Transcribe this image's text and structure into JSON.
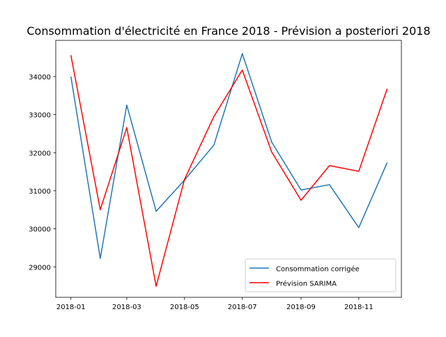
{
  "chart_data": {
    "type": "line",
    "title": "Consommation d'électricité en France 2018 - Prévision a posteriori 2018",
    "xlabel": "",
    "ylabel": "",
    "x": [
      "2018-01",
      "2018-02",
      "2018-03",
      "2018-04",
      "2018-05",
      "2018-06",
      "2018-07",
      "2018-08",
      "2018-09",
      "2018-10",
      "2018-11",
      "2018-12"
    ],
    "x_tick_labels": [
      "2018-01",
      "2018-03",
      "2018-05",
      "2018-07",
      "2018-09",
      "2018-11"
    ],
    "y_ticks": [
      29000,
      30000,
      31000,
      32000,
      33000,
      34000
    ],
    "ylim": [
      28200,
      34950
    ],
    "xlim": [
      "2017-12-16",
      "2018-12-16"
    ],
    "grid": false,
    "legend_position": "lower-right",
    "series": [
      {
        "name": "Consommation corrigée",
        "color": "#1f77b4",
        "values": [
          34000,
          29220,
          33250,
          30460,
          31280,
          32200,
          34600,
          32280,
          31020,
          31160,
          30030,
          31740
        ]
      },
      {
        "name": "Prévision SARIMA",
        "color": "#ff0000",
        "values": [
          34560,
          30500,
          32660,
          28490,
          31300,
          32950,
          34170,
          32020,
          30750,
          31660,
          31510,
          33680
        ]
      }
    ]
  }
}
